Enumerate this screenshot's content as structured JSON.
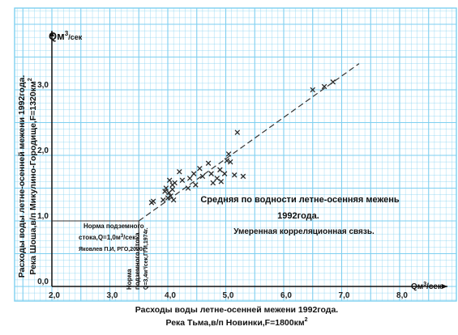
{
  "chart_data": {
    "type": "scatter",
    "title": "",
    "xlabel_line1": "Расходы воды летне-осенней межени 1992года.",
    "xlabel_line2": "Река Тьма,в/п Новинки,F=1800км",
    "xlabel_sup": "2",
    "ylabel_line1": "Расходы воды летне-осенней межени 1992года.",
    "ylabel_line2": "Река Шоша,в/п Микулино-Городище,F=1320км",
    "ylabel_sup": "2",
    "x_unit_label": "Qм",
    "x_unit_sup": "3",
    "x_unit_tail": "/сек",
    "y_unit_label": "Qм",
    "y_unit_sup": "3",
    "y_unit_tail": "/сек",
    "xlim": [
      2.0,
      8.5
    ],
    "ylim": [
      0.0,
      3.6
    ],
    "x_ticks": [
      {
        "v": 2.0,
        "label": "2,0"
      },
      {
        "v": 3.0,
        "label": "3,0"
      },
      {
        "v": 4.0,
        "label": "4,0"
      },
      {
        "v": 5.0,
        "label": "5,0"
      },
      {
        "v": 6.0,
        "label": "6,0"
      },
      {
        "v": 7.0,
        "label": "7,0"
      },
      {
        "v": 8.0,
        "label": "8,0"
      }
    ],
    "y_ticks": [
      {
        "v": 0.0,
        "label": "0,0"
      },
      {
        "v": 1.0,
        "label": "1,0"
      },
      {
        "v": 2.0,
        "label": "2,0"
      },
      {
        "v": 3.0,
        "label": "3,0"
      }
    ],
    "grid": true,
    "points": [
      {
        "x": 3.72,
        "y": 1.28
      },
      {
        "x": 3.75,
        "y": 1.3
      },
      {
        "x": 3.92,
        "y": 1.32
      },
      {
        "x": 3.95,
        "y": 1.45
      },
      {
        "x": 3.97,
        "y": 1.5
      },
      {
        "x": 4.0,
        "y": 1.35
      },
      {
        "x": 4.02,
        "y": 1.43
      },
      {
        "x": 4.03,
        "y": 1.62
      },
      {
        "x": 4.05,
        "y": 1.38
      },
      {
        "x": 4.08,
        "y": 1.48
      },
      {
        "x": 4.08,
        "y": 1.55
      },
      {
        "x": 4.1,
        "y": 1.32
      },
      {
        "x": 4.12,
        "y": 1.58
      },
      {
        "x": 4.2,
        "y": 1.75
      },
      {
        "x": 4.25,
        "y": 1.62
      },
      {
        "x": 4.35,
        "y": 1.5
      },
      {
        "x": 4.38,
        "y": 1.65
      },
      {
        "x": 4.45,
        "y": 1.72
      },
      {
        "x": 4.48,
        "y": 1.55
      },
      {
        "x": 4.55,
        "y": 1.8
      },
      {
        "x": 4.6,
        "y": 1.68
      },
      {
        "x": 4.7,
        "y": 1.88
      },
      {
        "x": 4.75,
        "y": 1.72
      },
      {
        "x": 4.78,
        "y": 1.58
      },
      {
        "x": 4.85,
        "y": 1.65
      },
      {
        "x": 4.9,
        "y": 1.78
      },
      {
        "x": 4.92,
        "y": 1.6
      },
      {
        "x": 4.98,
        "y": 1.72
      },
      {
        "x": 5.02,
        "y": 1.92
      },
      {
        "x": 5.05,
        "y": 2.02
      },
      {
        "x": 5.08,
        "y": 1.9
      },
      {
        "x": 5.15,
        "y": 1.7
      },
      {
        "x": 5.2,
        "y": 2.35
      },
      {
        "x": 5.3,
        "y": 1.68
      },
      {
        "x": 6.5,
        "y": 3.0
      },
      {
        "x": 6.7,
        "y": 3.05
      },
      {
        "x": 6.85,
        "y": 3.12
      }
    ],
    "regression_line": [
      {
        "x": 3.5,
        "y": 1.0
      },
      {
        "x": 7.3,
        "y": 3.4
      }
    ],
    "norm_point": {
      "x": 3.5,
      "y": 1.0
    },
    "annotations": {
      "title_line1": "Средняя по водности летне-осенняя  межень",
      "title_line2": "1992года.",
      "correlation": "Умеренная корреляционная  связь.",
      "norm_left_line1": "Норма подземного",
      "norm_left_line2_pre": "стока,Q=1,0м",
      "norm_left_line2_sup": "3",
      "norm_left_line2_post": "/сек.",
      "norm_left_line3": "Яковлев П.И, РГО,2020г.",
      "norm_bottom_line1": "Норма",
      "norm_bottom_line2": "подземного стока",
      "norm_bottom_line3": "Q=3,4м³/сек,ГГИ,1974г."
    },
    "colors": {
      "grid": "#7ecff0",
      "points": "#2a2a2a",
      "axis": "#111111",
      "background": "#ffffff"
    }
  }
}
